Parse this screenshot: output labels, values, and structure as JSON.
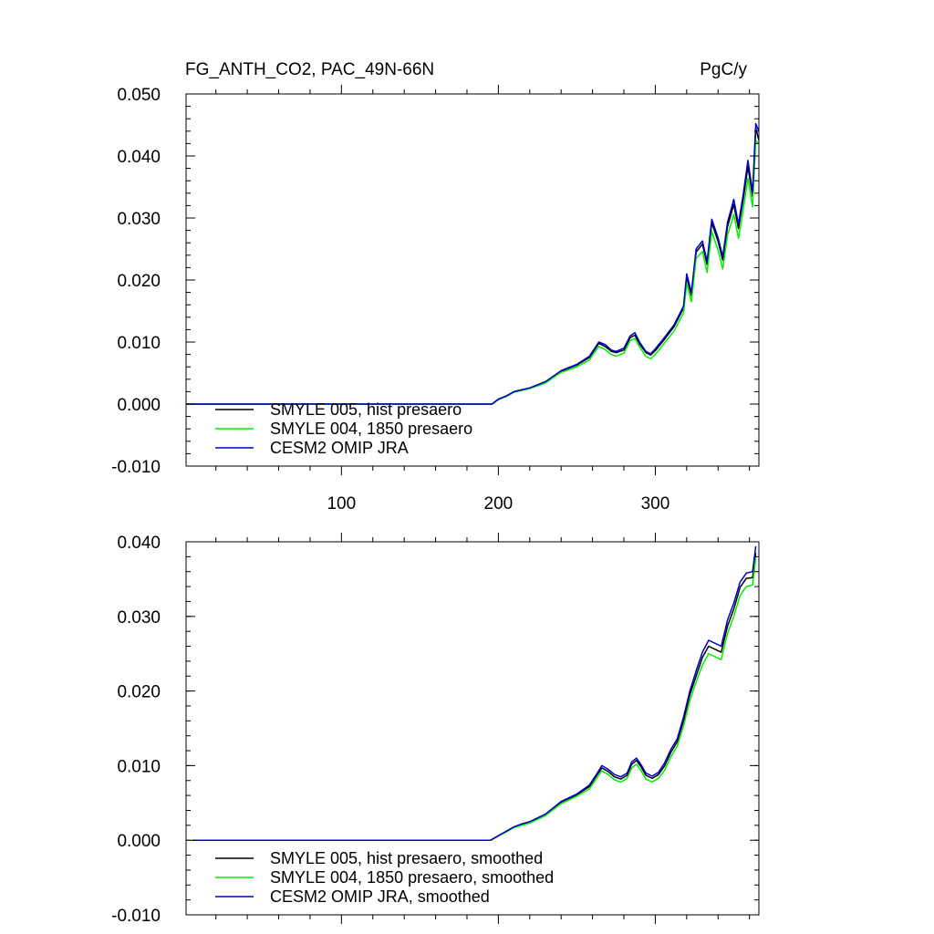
{
  "chart_data": [
    {
      "type": "line",
      "title": "FG_ANTH_CO2, PAC_49N-66N",
      "units": "PgC/y",
      "xlim": [
        1,
        366
      ],
      "ylim": [
        -0.01,
        0.05
      ],
      "xticks": [
        100,
        200,
        300
      ],
      "xtick_labels": [
        "100",
        "200",
        "300"
      ],
      "yticks": [
        -0.01,
        0.0,
        0.01,
        0.02,
        0.03,
        0.04,
        0.05
      ],
      "ytick_labels": [
        "-0.010",
        "0.000",
        "0.010",
        "0.020",
        "0.030",
        "0.040",
        "0.050"
      ],
      "grid": false,
      "legend_position": "bottom-left",
      "series": [
        {
          "name": "SMYLE 005, hist presaero",
          "color": "#000000",
          "x": [
            1,
            196,
            200,
            205,
            210,
            220,
            230,
            240,
            250,
            258,
            264,
            268,
            272,
            275,
            280,
            284,
            287,
            290,
            294,
            297,
            300,
            306,
            312,
            318,
            320,
            323,
            326,
            330,
            333,
            336,
            340,
            343,
            346,
            350,
            353,
            356,
            359,
            362,
            364,
            366
          ],
          "y": [
            0,
            0,
            0.0008,
            0.0013,
            0.002,
            0.0026,
            0.0036,
            0.0053,
            0.0063,
            0.0075,
            0.0098,
            0.0093,
            0.0085,
            0.0083,
            0.0087,
            0.0107,
            0.0111,
            0.0097,
            0.0083,
            0.0079,
            0.0086,
            0.0105,
            0.0125,
            0.0155,
            0.0205,
            0.0175,
            0.0245,
            0.0258,
            0.0225,
            0.0292,
            0.0262,
            0.0232,
            0.0286,
            0.0322,
            0.0283,
            0.033,
            0.0383,
            0.0335,
            0.0445,
            0.0425
          ]
        },
        {
          "name": "SMYLE 004, 1850 presaero",
          "color": "#00ee00",
          "x": [
            1,
            196,
            200,
            205,
            210,
            220,
            230,
            240,
            250,
            258,
            264,
            268,
            272,
            275,
            280,
            284,
            287,
            290,
            294,
            297,
            300,
            306,
            312,
            318,
            320,
            323,
            326,
            330,
            333,
            336,
            340,
            343,
            346,
            350,
            353,
            356,
            359,
            362,
            364,
            366
          ],
          "y": [
            0,
            0,
            0.0007,
            0.0012,
            0.0019,
            0.0025,
            0.0034,
            0.0051,
            0.006,
            0.0071,
            0.0093,
            0.0088,
            0.008,
            0.0077,
            0.0082,
            0.0102,
            0.0106,
            0.0092,
            0.0077,
            0.0073,
            0.008,
            0.0099,
            0.0118,
            0.0147,
            0.0195,
            0.0165,
            0.0235,
            0.0246,
            0.0212,
            0.0278,
            0.0248,
            0.0218,
            0.0272,
            0.0306,
            0.0267,
            0.0313,
            0.0364,
            0.0318,
            0.0425,
            0.042
          ]
        },
        {
          "name": "CESM2 OMIP JRA",
          "color": "#0000cc",
          "x": [
            1,
            196,
            200,
            205,
            210,
            220,
            230,
            240,
            250,
            258,
            264,
            268,
            272,
            275,
            280,
            284,
            287,
            290,
            294,
            297,
            300,
            306,
            312,
            318,
            320,
            323,
            326,
            330,
            333,
            336,
            340,
            343,
            346,
            350,
            353,
            356,
            359,
            362,
            364,
            366
          ],
          "y": [
            0,
            0,
            0.0008,
            0.0013,
            0.002,
            0.0026,
            0.0036,
            0.0054,
            0.0064,
            0.0077,
            0.01,
            0.0096,
            0.0087,
            0.0085,
            0.009,
            0.011,
            0.0115,
            0.01,
            0.0085,
            0.0081,
            0.0089,
            0.0108,
            0.0128,
            0.0158,
            0.021,
            0.018,
            0.025,
            0.0263,
            0.023,
            0.0298,
            0.0268,
            0.0238,
            0.0293,
            0.033,
            0.029,
            0.0338,
            0.0393,
            0.0342,
            0.0452,
            0.044
          ]
        }
      ]
    },
    {
      "type": "line",
      "xlim": [
        1,
        366
      ],
      "ylim": [
        -0.01,
        0.04
      ],
      "xticks": [
        100,
        200,
        300
      ],
      "yticks": [
        -0.01,
        0.0,
        0.01,
        0.02,
        0.03,
        0.04
      ],
      "ytick_labels": [
        "-0.010",
        "0.000",
        "0.010",
        "0.020",
        "0.030",
        "0.040"
      ],
      "grid": false,
      "legend_position": "bottom-left",
      "series": [
        {
          "name": "SMYLE 005, hist presaero, smoothed",
          "color": "#000000",
          "x": [
            5,
            195,
            200,
            205,
            210,
            215,
            220,
            230,
            240,
            250,
            258,
            263,
            266,
            270,
            274,
            278,
            282,
            285,
            288,
            291,
            294,
            298,
            302,
            306,
            310,
            314,
            318,
            322,
            326,
            330,
            334,
            338,
            342,
            346,
            350,
            354,
            358,
            362,
            364
          ],
          "y": [
            0,
            0,
            0.0006,
            0.0012,
            0.0018,
            0.0021,
            0.0024,
            0.0034,
            0.0051,
            0.0061,
            0.0072,
            0.0088,
            0.0097,
            0.0092,
            0.0085,
            0.0082,
            0.0087,
            0.0102,
            0.0107,
            0.0098,
            0.0087,
            0.0083,
            0.0088,
            0.01,
            0.0118,
            0.0132,
            0.016,
            0.0195,
            0.022,
            0.0245,
            0.026,
            0.0256,
            0.0252,
            0.0287,
            0.031,
            0.0339,
            0.0351,
            0.0352,
            0.0385
          ]
        },
        {
          "name": "SMYLE 004, 1850 presaero, smoothed",
          "color": "#00ee00",
          "x": [
            5,
            195,
            200,
            205,
            210,
            215,
            220,
            230,
            240,
            250,
            258,
            263,
            266,
            270,
            274,
            278,
            282,
            285,
            288,
            291,
            294,
            298,
            302,
            306,
            310,
            314,
            318,
            322,
            326,
            330,
            334,
            338,
            342,
            346,
            350,
            354,
            358,
            362,
            364
          ],
          "y": [
            0,
            0,
            0.0006,
            0.0011,
            0.0017,
            0.002,
            0.0023,
            0.0033,
            0.0049,
            0.0059,
            0.0069,
            0.0084,
            0.0093,
            0.0088,
            0.0081,
            0.0078,
            0.0083,
            0.0097,
            0.0102,
            0.0093,
            0.0082,
            0.0078,
            0.0083,
            0.0094,
            0.0112,
            0.0126,
            0.0153,
            0.0187,
            0.0212,
            0.0235,
            0.025,
            0.0246,
            0.0242,
            0.0277,
            0.03,
            0.0328,
            0.034,
            0.0342,
            0.0378
          ]
        },
        {
          "name": "CESM2 OMIP JRA, smoothed",
          "color": "#0000cc",
          "x": [
            5,
            195,
            200,
            205,
            210,
            215,
            220,
            230,
            240,
            250,
            258,
            263,
            266,
            270,
            274,
            278,
            282,
            285,
            288,
            291,
            294,
            298,
            302,
            306,
            310,
            314,
            318,
            322,
            326,
            330,
            334,
            338,
            342,
            346,
            350,
            354,
            358,
            362,
            364
          ],
          "y": [
            0,
            0,
            0.0006,
            0.0012,
            0.0018,
            0.0022,
            0.0025,
            0.0035,
            0.0052,
            0.0062,
            0.0074,
            0.009,
            0.01,
            0.0095,
            0.0088,
            0.0085,
            0.009,
            0.0105,
            0.011,
            0.0101,
            0.009,
            0.0086,
            0.0091,
            0.0104,
            0.0122,
            0.0136,
            0.0165,
            0.02,
            0.0227,
            0.0252,
            0.0268,
            0.0264,
            0.026,
            0.0295,
            0.0318,
            0.0346,
            0.0358,
            0.036,
            0.0394
          ]
        }
      ]
    }
  ]
}
